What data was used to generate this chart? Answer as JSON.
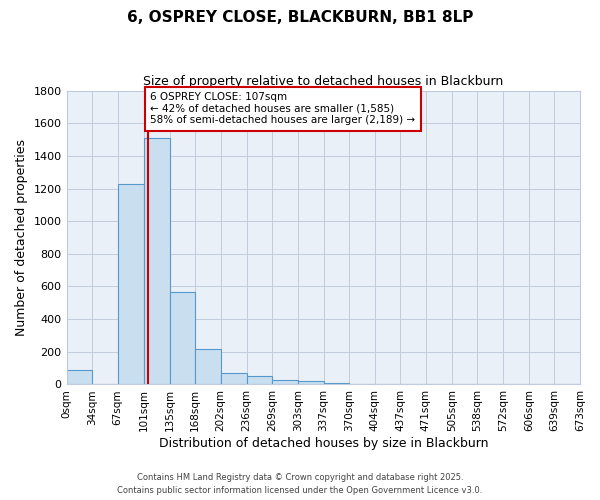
{
  "title": "6, OSPREY CLOSE, BLACKBURN, BB1 8LP",
  "subtitle": "Size of property relative to detached houses in Blackburn",
  "xlabel": "Distribution of detached houses by size in Blackburn",
  "ylabel": "Number of detached properties",
  "bin_edges": [
    0,
    34,
    67,
    101,
    135,
    168,
    202,
    236,
    269,
    303,
    337,
    370,
    404,
    437,
    471,
    505,
    538,
    572,
    606,
    639,
    673
  ],
  "bar_heights": [
    90,
    0,
    1230,
    1510,
    565,
    215,
    70,
    50,
    30,
    20,
    10,
    5,
    2,
    1,
    0,
    0,
    0,
    0,
    0,
    0
  ],
  "bar_color": "#c9dff0",
  "bar_edge_color": "#5599cc",
  "grid_color": "#c0ccdd",
  "bg_color": "#eaf0f8",
  "property_line_x": 107,
  "property_line_color": "#cc0000",
  "annotation_line1": "6 OSPREY CLOSE: 107sqm",
  "annotation_line2": "← 42% of detached houses are smaller (1,585)",
  "annotation_line3": "58% of semi-detached houses are larger (2,189) →",
  "annotation_box_edge": "#cc0000",
  "ylim": [
    0,
    1800
  ],
  "yticks": [
    0,
    200,
    400,
    600,
    800,
    1000,
    1200,
    1400,
    1600,
    1800
  ],
  "footer1": "Contains HM Land Registry data © Crown copyright and database right 2025.",
  "footer2": "Contains public sector information licensed under the Open Government Licence v3.0."
}
